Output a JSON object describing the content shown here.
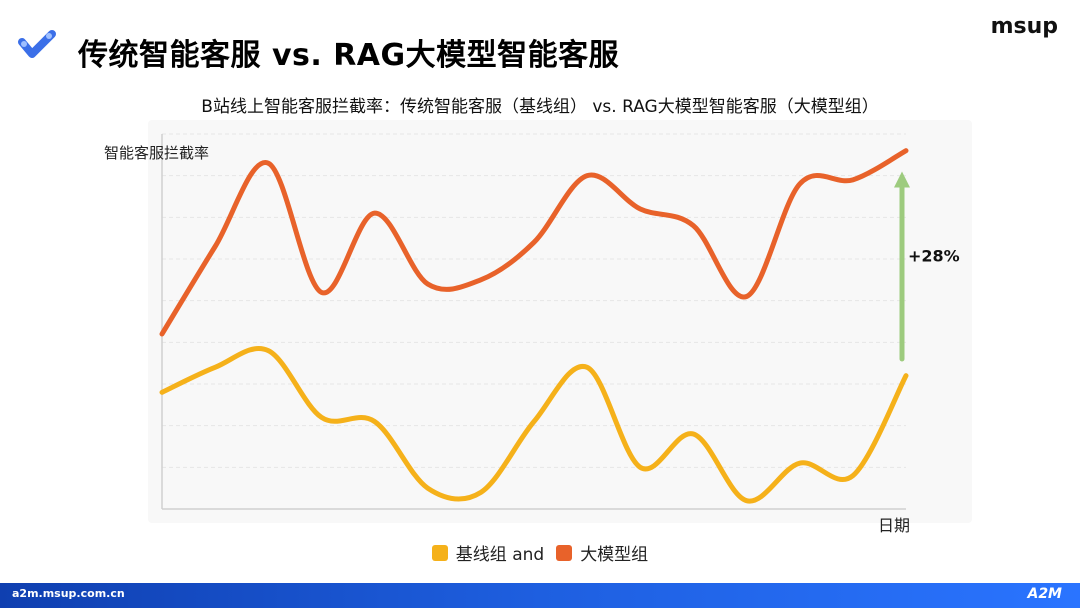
{
  "slide": {
    "title": "传统智能客服 vs. RAG大模型智能客服",
    "brand": "msup",
    "footer_url": "a2m.msup.com.cn",
    "footer_logo": "A2M"
  },
  "colors": {
    "baseline": "#F5B11A",
    "rag": "#E8622A",
    "arrow": "#9DCB7E",
    "grid": "#E6E6E6",
    "axis": "#CFCFCF",
    "plot_bg": "#F8F8F8"
  },
  "chart_data": {
    "type": "line",
    "title": "B站线上智能客服拦截率：传统智能客服（基线组） vs. RAG大模型智能客服（大模型组）",
    "ylabel": "智能客服拦截率",
    "xlabel": "日期",
    "legend": [
      "基线组 and",
      "大模型组"
    ],
    "legend_position": "bottom",
    "grid": true,
    "x": [
      0,
      1,
      2,
      3,
      4,
      5,
      6,
      7,
      8,
      9,
      10,
      11,
      12,
      13,
      14
    ],
    "xlim": [
      0,
      14
    ],
    "ylim": [
      0,
      9
    ],
    "series": [
      {
        "name": "大模型组",
        "values": [
          4.2,
          6.3,
          8.3,
          5.2,
          7.1,
          5.4,
          5.5,
          6.4,
          8.0,
          7.2,
          6.8,
          5.1,
          7.8,
          7.9,
          8.6
        ]
      },
      {
        "name": "基线组",
        "values": [
          2.8,
          3.4,
          3.8,
          2.2,
          2.1,
          0.5,
          0.4,
          2.1,
          3.4,
          1.0,
          1.8,
          0.2,
          1.1,
          0.8,
          3.2
        ]
      }
    ],
    "annotation": {
      "text": "+28%",
      "x": 14,
      "y_from": 3.6,
      "y_to": 8.1
    }
  }
}
